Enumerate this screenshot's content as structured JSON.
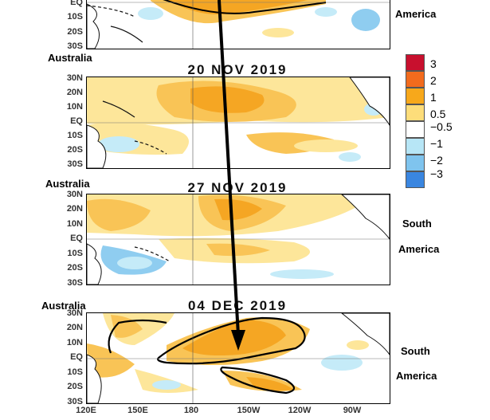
{
  "panels": [
    {
      "title": "",
      "lat_labels": [
        "EQ",
        "10S",
        "20S",
        "30S"
      ]
    },
    {
      "title": "20 NOV 2019",
      "lat_labels": [
        "30N",
        "20N",
        "10N",
        "EQ",
        "10S",
        "20S",
        "30S"
      ]
    },
    {
      "title": "27 NOV 2019",
      "lat_labels": [
        "30N",
        "20N",
        "10N",
        "EQ",
        "10S",
        "20S",
        "30S"
      ]
    },
    {
      "title": "04 DEC 2019",
      "lat_labels": [
        "30N",
        "20N",
        "10N",
        "EQ",
        "10S",
        "20S",
        "30S"
      ]
    }
  ],
  "lon_labels": [
    "120E",
    "150E",
    "180",
    "150W",
    "120W",
    "90W"
  ],
  "region_labels": {
    "america_top": "America",
    "australia_1": "Australia",
    "australia_2": "Australia",
    "south_1": "South",
    "america_1": "America",
    "australia_3": "Australia",
    "south_2": "South",
    "america_2": "America"
  },
  "legend": {
    "entries": [
      {
        "label": "3",
        "color": "#c8102e"
      },
      {
        "label": "2",
        "color": "#f26b1d"
      },
      {
        "label": "1",
        "color": "#f7a81b"
      },
      {
        "label": "0.5",
        "color": "#fddd7a"
      },
      {
        "label": "−0.5",
        "color": "#ffffff"
      },
      {
        "label": "−1",
        "color": "#b7e6f6"
      },
      {
        "label": "−2",
        "color": "#7fc4ee"
      },
      {
        "label": "−3",
        "color": "#3a86e0"
      }
    ]
  },
  "colors": {
    "warm_light": "#fde69a",
    "warm": "#f9c456",
    "warm_strong": "#f5a623",
    "cool_light": "#c5ebf8",
    "cool": "#8fcdf0",
    "land": "#ffffff",
    "contour": "#000000"
  },
  "icons": [
    "trend-arrow-icon"
  ]
}
